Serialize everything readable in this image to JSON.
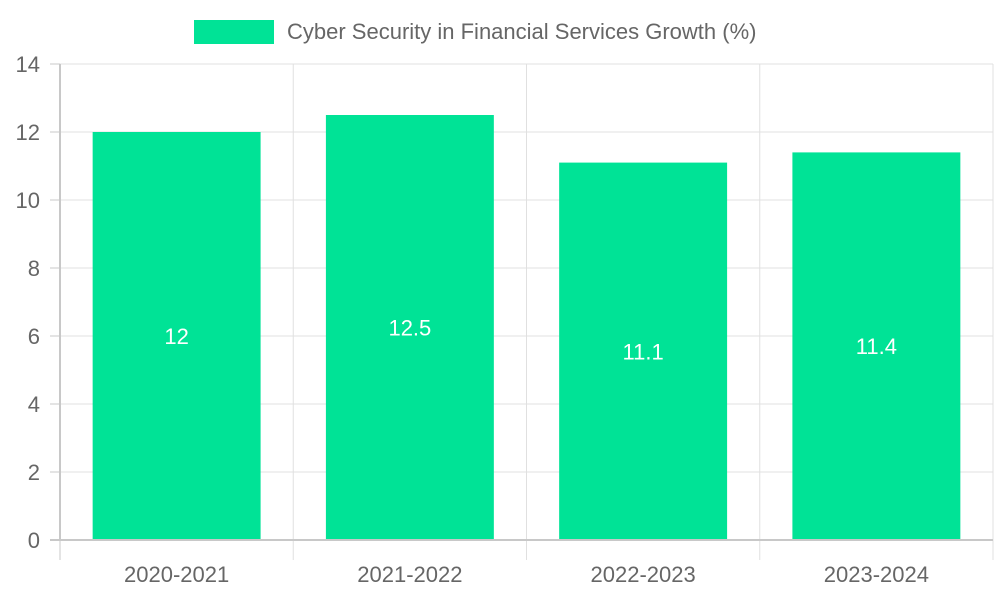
{
  "chart_data": {
    "type": "bar",
    "categories": [
      "2020-2021",
      "2021-2022",
      "2022-2023",
      "2023-2024"
    ],
    "series": [
      {
        "name": "Cyber Security in Financial Services Growth (%)",
        "values": [
          12,
          12.5,
          11.1,
          11.4
        ],
        "color": "#00e396"
      }
    ],
    "data_labels": [
      "12",
      "12.5",
      "11.1",
      "11.4"
    ],
    "ylim": [
      0,
      14
    ],
    "y_ticks": [
      "0",
      "2",
      "4",
      "6",
      "8",
      "10",
      "12",
      "14"
    ],
    "grid": true,
    "legend_position": "top-center",
    "colors": {
      "bar": "#00e396",
      "grid": "#e0e0e0",
      "axis": "#c8c8c8",
      "text": "#666666",
      "label": "#ffffff"
    }
  }
}
